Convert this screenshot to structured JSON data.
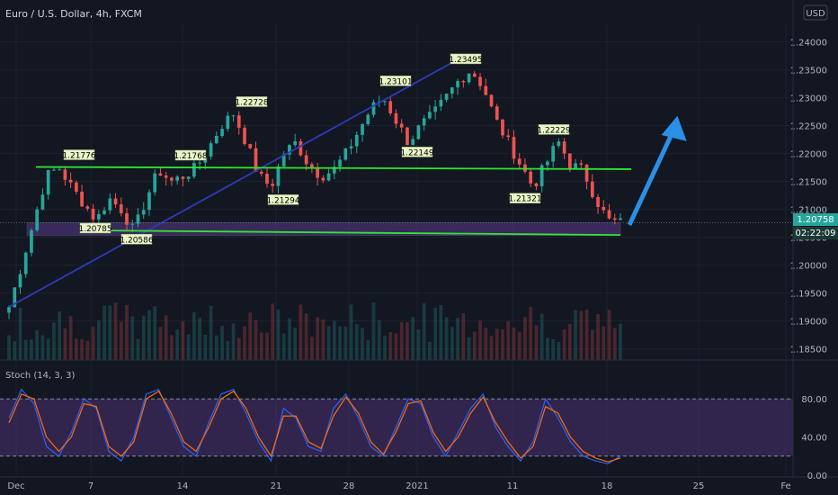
{
  "header": {
    "title": "Euro / U.S. Dollar, 4h, FXCM",
    "currency": "USD"
  },
  "chart_data": {
    "type": "candlestick",
    "title": "Euro / U.S. Dollar, 4h, FXCM",
    "ylim": [
      1.183,
      1.243
    ],
    "y_ticks": [
      "1.24000",
      "1.23500",
      "1.23000",
      "1.22500",
      "1.22000",
      "1.21500",
      "1.21000",
      "1.20500",
      "1.20000",
      "1.19500",
      "1.19000",
      "1.18500"
    ],
    "x_ticks": [
      "Dec",
      "7",
      "14",
      "21",
      "28",
      "2021",
      "11",
      "18",
      "25",
      "Fe"
    ],
    "last_price": "1.20758",
    "countdown": "02:22:09",
    "support_line": 1.2058,
    "resistance_line": 1.2176,
    "swing_labels": [
      {
        "text": "1.21776",
        "price": 1.21776
      },
      {
        "text": "1.20785",
        "price": 1.20785
      },
      {
        "text": "1.20586",
        "price": 1.20586
      },
      {
        "text": "1.21768",
        "price": 1.21768
      },
      {
        "text": "1.22728",
        "price": 1.22728
      },
      {
        "text": "1.21294",
        "price": 1.21294
      },
      {
        "text": "1.23101",
        "price": 1.23101
      },
      {
        "text": "1.22149",
        "price": 1.22149
      },
      {
        "text": "1.23495",
        "price": 1.23495
      },
      {
        "text": "1.21321",
        "price": 1.21321
      },
      {
        "text": "1.22229",
        "price": 1.22229
      }
    ],
    "price_path": [
      1.1925,
      1.2,
      1.208,
      1.216,
      1.2175,
      1.214,
      1.211,
      1.208,
      1.212,
      1.21,
      1.206,
      1.212,
      1.217,
      1.215,
      1.216,
      1.2175,
      1.221,
      1.225,
      1.2272,
      1.222,
      1.216,
      1.214,
      1.22,
      1.222,
      1.218,
      1.216,
      1.217,
      1.22,
      1.224,
      1.228,
      1.23,
      1.226,
      1.222,
      1.225,
      1.227,
      1.23,
      1.233,
      1.235,
      1.232,
      1.226,
      1.222,
      1.218,
      1.214,
      1.218,
      1.2222,
      1.218,
      1.217,
      1.212,
      1.208,
      1.2076
    ],
    "stochastic": {
      "name": "Stoch (14, 3, 3)",
      "ylim": [
        0,
        100
      ],
      "y_ticks": [
        "80.00",
        "40.00",
        "0.00"
      ],
      "upper_band": 80,
      "lower_band": 20,
      "k": [
        60,
        90,
        75,
        30,
        20,
        45,
        80,
        70,
        25,
        15,
        40,
        85,
        90,
        60,
        30,
        20,
        55,
        85,
        90,
        65,
        35,
        15,
        70,
        60,
        30,
        25,
        70,
        85,
        60,
        30,
        20,
        50,
        80,
        75,
        40,
        20,
        45,
        70,
        85,
        50,
        30,
        15,
        35,
        80,
        60,
        35,
        20,
        15,
        12,
        20
      ],
      "d": [
        55,
        85,
        80,
        40,
        25,
        40,
        75,
        72,
        30,
        20,
        35,
        80,
        88,
        65,
        35,
        25,
        50,
        80,
        88,
        70,
        40,
        20,
        62,
        62,
        35,
        28,
        62,
        82,
        65,
        35,
        22,
        45,
        75,
        78,
        45,
        25,
        40,
        65,
        82,
        55,
        35,
        18,
        30,
        72,
        65,
        40,
        25,
        18,
        14,
        18
      ]
    },
    "colors": {
      "up": "#26a69a",
      "down": "#ef5350",
      "trend": "#2e3ab8",
      "horizontal": "#2ee82e",
      "arrow": "#2c8fe6",
      "zone": "#6b3fa0"
    }
  }
}
